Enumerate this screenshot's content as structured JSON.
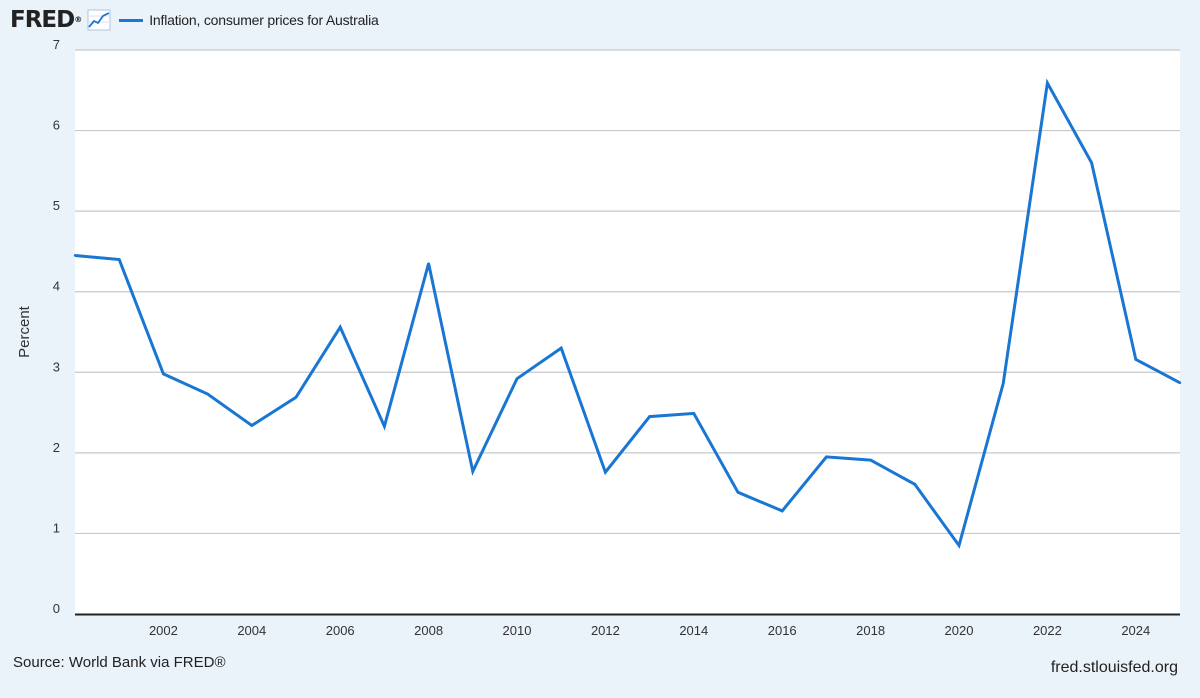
{
  "header": {
    "logo_text": "FRED",
    "logo_mark": "®",
    "logo_icon": "line-chart-icon",
    "legend_label": "Inflation, consumer prices for Australia"
  },
  "footer": {
    "source": "Source: World Bank via FRED®",
    "site": "fred.stlouisfed.org"
  },
  "colors": {
    "series": "#1976d2",
    "background": "#eaf2fa",
    "plot_background": "#ffffff",
    "grid": "#c8c8c8"
  },
  "chart_data": {
    "type": "line",
    "ylabel": "Percent",
    "xlabel": "",
    "ylim": [
      0,
      7
    ],
    "xlim": [
      2000,
      2025
    ],
    "yticks": [
      0,
      1,
      2,
      3,
      4,
      5,
      6,
      7
    ],
    "xticks": [
      2002,
      2004,
      2006,
      2008,
      2010,
      2012,
      2014,
      2016,
      2018,
      2020,
      2022,
      2024
    ],
    "grid": true,
    "legend_position": "top-left",
    "series": [
      {
        "name": "Inflation, consumer prices for Australia",
        "x": [
          2000,
          2001,
          2002,
          2003,
          2004,
          2005,
          2006,
          2007,
          2008,
          2009,
          2010,
          2011,
          2012,
          2013,
          2014,
          2015,
          2016,
          2017,
          2018,
          2019,
          2020,
          2021,
          2022,
          2023,
          2024,
          2025
        ],
        "values": [
          4.45,
          4.4,
          2.98,
          2.73,
          2.34,
          2.69,
          3.56,
          2.33,
          4.35,
          1.77,
          2.92,
          3.3,
          1.76,
          2.45,
          2.49,
          1.51,
          1.28,
          1.95,
          1.91,
          1.61,
          0.85,
          2.86,
          6.59,
          5.6,
          3.16,
          2.87
        ]
      }
    ]
  }
}
